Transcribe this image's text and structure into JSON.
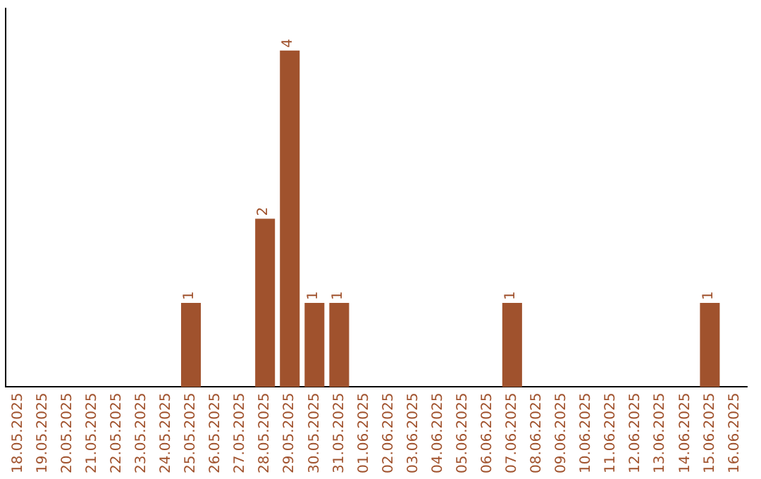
{
  "chart_data": {
    "type": "bar",
    "categories": [
      "18.05.2025",
      "19.05.2025",
      "20.05.2025",
      "21.05.2025",
      "22.05.2025",
      "23.05.2025",
      "24.05.2025",
      "25.05.2025",
      "26.05.2025",
      "27.05.2025",
      "28.05.2025",
      "29.05.2025",
      "30.05.2025",
      "31.05.2025",
      "01.06.2025",
      "02.06.2025",
      "03.06.2025",
      "04.06.2025",
      "05.06.2025",
      "06.06.2025",
      "07.06.2025",
      "08.06.2025",
      "09.06.2025",
      "10.06.2025",
      "11.06.2025",
      "12.06.2025",
      "13.06.2025",
      "14.06.2025",
      "15.06.2025",
      "16.06.2025"
    ],
    "values": [
      0,
      0,
      0,
      0,
      0,
      0,
      0,
      1,
      0,
      0,
      2,
      4,
      1,
      1,
      0,
      0,
      0,
      0,
      0,
      0,
      1,
      0,
      0,
      0,
      0,
      0,
      0,
      0,
      1,
      0
    ],
    "value_labels": [
      null,
      null,
      null,
      null,
      null,
      null,
      null,
      "1",
      null,
      null,
      "2",
      "4",
      "1",
      "1",
      null,
      null,
      null,
      null,
      null,
      null,
      "1",
      null,
      null,
      null,
      null,
      null,
      null,
      null,
      "1",
      null
    ],
    "color": "#a0522d",
    "grid": false,
    "legend": false,
    "tick_labels": "x"
  }
}
